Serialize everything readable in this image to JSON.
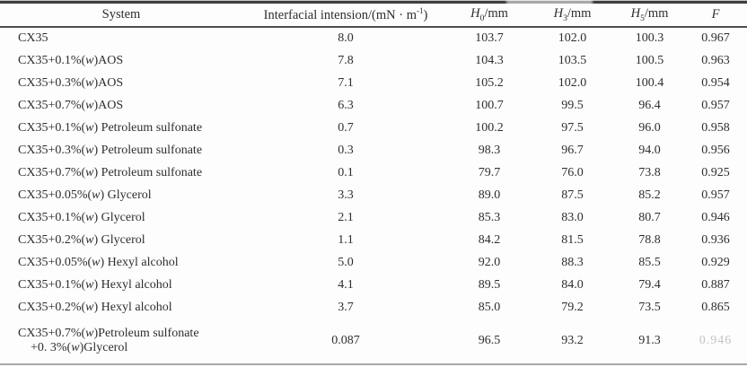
{
  "table": {
    "header": {
      "system": "System",
      "ift_prefix": "Interfacial intension/(mN · m",
      "ift_sup": "-1",
      "ift_suffix": ")",
      "h0": {
        "base": "H",
        "sub": "0",
        "unit": "/mm"
      },
      "h3": {
        "base": "H",
        "sub": "3",
        "unit": "/mm"
      },
      "h5": {
        "base": "H",
        "sub": "5",
        "unit": "/mm"
      },
      "f": "F"
    },
    "rows": [
      {
        "system": "CX35",
        "ift": "8.0",
        "h0": "103.7",
        "h3": "102.0",
        "h5": "100.3",
        "f": "0.967"
      },
      {
        "system": "CX35+0.1%(w)AOS",
        "ift": "7.8",
        "h0": "104.3",
        "h3": "103.5",
        "h5": "100.5",
        "f": "0.963"
      },
      {
        "system": "CX35+0.3%(w)AOS",
        "ift": "7.1",
        "h0": "105.2",
        "h3": "102.0",
        "h5": "100.4",
        "f": "0.954"
      },
      {
        "system": "CX35+0.7%(w)AOS",
        "ift": "6.3",
        "h0": "100.7",
        "h3": "99.5",
        "h5": "96.4",
        "f": "0.957"
      },
      {
        "system": "CX35+0.1%(w) Petroleum sulfonate",
        "ift": "0.7",
        "h0": "100.2",
        "h3": "97.5",
        "h5": "96.0",
        "f": "0.958"
      },
      {
        "system": "CX35+0.3%(w) Petroleum sulfonate",
        "ift": "0.3",
        "h0": "98.3",
        "h3": "96.7",
        "h5": "94.0",
        "f": "0.956"
      },
      {
        "system": "CX35+0.7%(w) Petroleum sulfonate",
        "ift": "0.1",
        "h0": "79.7",
        "h3": "76.0",
        "h5": "73.8",
        "f": "0.925"
      },
      {
        "system": "CX35+0.05%(w) Glycerol",
        "ift": "3.3",
        "h0": "89.0",
        "h3": "87.5",
        "h5": "85.2",
        "f": "0.957"
      },
      {
        "system": "CX35+0.1%(w) Glycerol",
        "ift": "2.1",
        "h0": "85.3",
        "h3": "83.0",
        "h5": "80.7",
        "f": "0.946"
      },
      {
        "system": "CX35+0.2%(w) Glycerol",
        "ift": "1.1",
        "h0": "84.2",
        "h3": "81.5",
        "h5": "78.8",
        "f": "0.936"
      },
      {
        "system": "CX35+0.05%(w) Hexyl alcohol",
        "ift": "5.0",
        "h0": "92.0",
        "h3": "88.3",
        "h5": "85.5",
        "f": "0.929"
      },
      {
        "system": "CX35+0.1%(w) Hexyl alcohol",
        "ift": "4.1",
        "h0": "89.5",
        "h3": "84.0",
        "h5": "79.4",
        "f": "0.887"
      },
      {
        "system": "CX35+0.2%(w) Hexyl alcohol",
        "ift": "3.7",
        "h0": "85.0",
        "h3": "79.2",
        "h5": "73.5",
        "f": "0.865"
      },
      {
        "system": "CX35+0.7%(w)Petroleum sulfonate\n+0. 3%(w)Glycerol",
        "ift": "0.087",
        "h0": "96.5",
        "h3": "93.2",
        "h5": "91.3",
        "f": "0.946",
        "f_faded": true
      }
    ]
  }
}
